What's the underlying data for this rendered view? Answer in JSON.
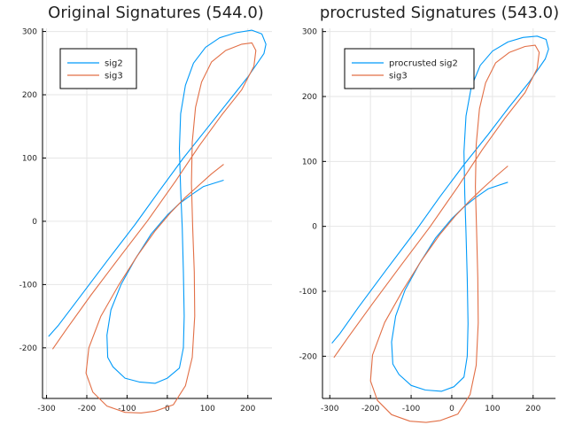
{
  "colors": {
    "sig2": "#009AF9",
    "sig3": "#E26F46"
  },
  "chart_data": [
    {
      "type": "line",
      "title": "Original Signatures (544.0)",
      "xlabel": "",
      "ylabel": "",
      "xlim": [
        -310,
        260
      ],
      "ylim": [
        -280,
        305
      ],
      "xticks": [
        -300,
        -200,
        -100,
        0,
        100,
        200
      ],
      "yticks": [
        -200,
        -100,
        0,
        100,
        200,
        300
      ],
      "xtick_labels": [
        "-300",
        "-200",
        "-100",
        "0",
        "100",
        "200"
      ],
      "ytick_labels": [
        "-200",
        "-100",
        "0",
        "100",
        "200",
        "300"
      ],
      "grid": true,
      "legend_position": "top-left",
      "series": [
        {
          "name": "sig2",
          "color": "#009AF9",
          "x": [
            140,
            90,
            60,
            30,
            0,
            -40,
            -80,
            -115,
            -140,
            -150,
            -148,
            -135,
            -105,
            -70,
            -30,
            0,
            30,
            40,
            42,
            40,
            37,
            33,
            30,
            33,
            45,
            65,
            95,
            130,
            170,
            210,
            235,
            245,
            240,
            200,
            150,
            100,
            40,
            -20,
            -80,
            -150,
            -220,
            -270,
            -295
          ],
          "y": [
            65,
            55,
            42,
            28,
            10,
            -20,
            -60,
            -100,
            -140,
            -180,
            -215,
            -230,
            -248,
            -254,
            -256,
            -248,
            -232,
            -200,
            -150,
            -80,
            -10,
            50,
            115,
            170,
            215,
            250,
            275,
            290,
            298,
            302,
            296,
            280,
            265,
            228,
            188,
            148,
            100,
            48,
            -5,
            -63,
            -122,
            -164,
            -182
          ]
        },
        {
          "name": "sig3",
          "color": "#E26F46",
          "x": [
            140,
            110,
            75,
            45,
            10,
            -30,
            -75,
            -120,
            -165,
            -195,
            -202,
            -185,
            -150,
            -105,
            -65,
            -30,
            15,
            45,
            62,
            68,
            67,
            63,
            60,
            62,
            70,
            85,
            110,
            145,
            185,
            210,
            220,
            215,
            185,
            135,
            80,
            20,
            -50,
            -120,
            -190,
            -250,
            -285
          ],
          "y": [
            90,
            75,
            55,
            38,
            15,
            -15,
            -55,
            -100,
            -150,
            -200,
            -240,
            -270,
            -292,
            -302,
            -303,
            -300,
            -290,
            -260,
            -215,
            -150,
            -80,
            -10,
            60,
            125,
            180,
            220,
            252,
            270,
            280,
            282,
            270,
            245,
            208,
            168,
            120,
            63,
            0,
            -58,
            -117,
            -170,
            -202
          ]
        }
      ]
    },
    {
      "type": "line",
      "title": "procrusted Signatures (543.0)",
      "xlabel": "",
      "ylabel": "",
      "xlim": [
        -318,
        255
      ],
      "ylim": [
        -265,
        305
      ],
      "xticks": [
        -300,
        -200,
        -100,
        0,
        100,
        200
      ],
      "yticks": [
        -200,
        -100,
        0,
        100,
        200,
        300
      ],
      "xtick_labels": [
        "-300",
        "-200",
        "-100",
        "0",
        "100",
        "200"
      ],
      "ytick_labels": [
        "-200",
        "-100",
        "0",
        "100",
        "200",
        "300"
      ],
      "grid": true,
      "legend_position": "top-left",
      "series": [
        {
          "name": "procrusted sig2",
          "color": "#009AF9",
          "x": [
            138,
            90,
            60,
            30,
            0,
            -40,
            -80,
            -115,
            -138,
            -148,
            -145,
            -130,
            -100,
            -65,
            -25,
            5,
            30,
            38,
            40,
            38,
            35,
            32,
            30,
            35,
            48,
            70,
            100,
            138,
            175,
            210,
            232,
            238,
            230,
            190,
            140,
            90,
            30,
            -30,
            -90,
            -160,
            -230,
            -275,
            -295
          ],
          "y": [
            68,
            58,
            45,
            30,
            12,
            -18,
            -58,
            -98,
            -138,
            -178,
            -212,
            -228,
            -245,
            -252,
            -254,
            -247,
            -232,
            -200,
            -150,
            -80,
            -10,
            50,
            115,
            170,
            215,
            248,
            270,
            284,
            291,
            293,
            288,
            273,
            258,
            222,
            183,
            142,
            95,
            45,
            -8,
            -66,
            -125,
            -165,
            -180
          ]
        },
        {
          "name": "sig3",
          "color": "#E26F46",
          "x": [
            138,
            110,
            75,
            45,
            10,
            -30,
            -75,
            -120,
            -165,
            -195,
            -200,
            -183,
            -148,
            -103,
            -63,
            -28,
            15,
            45,
            60,
            65,
            64,
            61,
            58,
            60,
            68,
            83,
            108,
            142,
            180,
            205,
            215,
            210,
            180,
            130,
            75,
            15,
            -55,
            -125,
            -195,
            -255,
            -290
          ],
          "y": [
            93,
            78,
            58,
            40,
            17,
            -13,
            -53,
            -98,
            -148,
            -198,
            -238,
            -268,
            -290,
            -300,
            -302,
            -299,
            -289,
            -259,
            -214,
            -149,
            -79,
            -9,
            61,
            126,
            181,
            221,
            252,
            268,
            277,
            279,
            268,
            243,
            206,
            166,
            118,
            61,
            -2,
            -60,
            -119,
            -171,
            -202
          ]
        }
      ]
    }
  ]
}
